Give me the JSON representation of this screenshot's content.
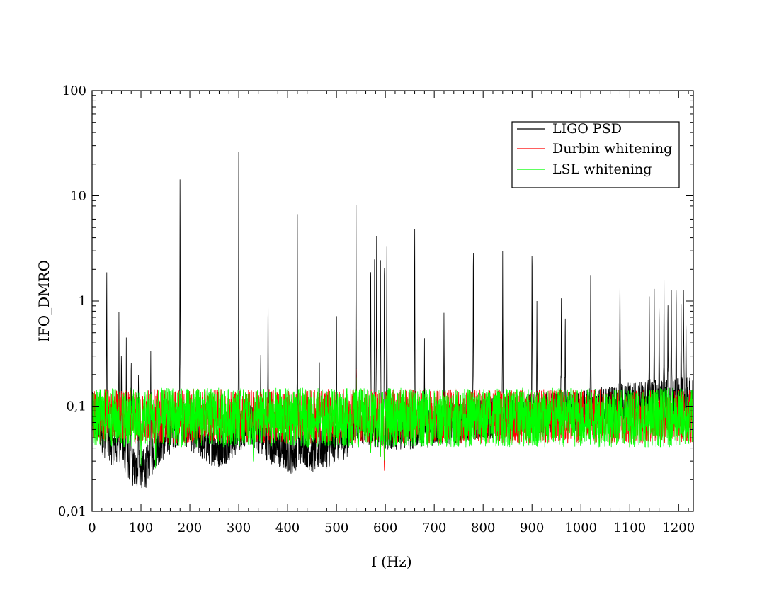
{
  "chart_data": {
    "type": "line",
    "xlabel": "f (Hz)",
    "ylabel": "IFO_DMRO",
    "xlim": [
      0,
      1230
    ],
    "ylim": [
      0.01,
      100
    ],
    "yscale": "log",
    "x_ticks": [
      0,
      100,
      200,
      300,
      400,
      500,
      600,
      700,
      800,
      900,
      1000,
      1100,
      1200
    ],
    "x_tick_labels": [
      "0",
      "100",
      "200",
      "300",
      "400",
      "500",
      "600",
      "700",
      "800",
      "900",
      "1000",
      "1100",
      "1200"
    ],
    "y_ticks": [
      0.01,
      0.1,
      1,
      10,
      100
    ],
    "y_tick_labels": [
      "0,01",
      "0,1",
      "1",
      "10",
      "100"
    ],
    "grid": false,
    "legend_position": "top-right",
    "series": [
      {
        "name": "LIGO PSD",
        "color": "#000000",
        "baseline": [
          [
            0,
            0.09
          ],
          [
            30,
            0.045
          ],
          [
            60,
            0.04
          ],
          [
            90,
            0.024
          ],
          [
            110,
            0.026
          ],
          [
            130,
            0.04
          ],
          [
            160,
            0.055
          ],
          [
            180,
            0.07
          ],
          [
            200,
            0.06
          ],
          [
            230,
            0.045
          ],
          [
            260,
            0.04
          ],
          [
            290,
            0.05
          ],
          [
            320,
            0.07
          ],
          [
            350,
            0.05
          ],
          [
            380,
            0.04
          ],
          [
            410,
            0.035
          ],
          [
            430,
            0.045
          ],
          [
            450,
            0.036
          ],
          [
            480,
            0.04
          ],
          [
            520,
            0.05
          ],
          [
            540,
            0.07
          ],
          [
            600,
            0.06
          ],
          [
            650,
            0.06
          ],
          [
            700,
            0.065
          ],
          [
            800,
            0.075
          ],
          [
            900,
            0.085
          ],
          [
            1000,
            0.09
          ],
          [
            1100,
            0.11
          ],
          [
            1230,
            0.12
          ]
        ],
        "peaks": [
          [
            30,
            3.5
          ],
          [
            55,
            1.0
          ],
          [
            60,
            0.5
          ],
          [
            70,
            0.45
          ],
          [
            80,
            0.4
          ],
          [
            95,
            0.3
          ],
          [
            120,
            0.4
          ],
          [
            180,
            32
          ],
          [
            300,
            40
          ],
          [
            345,
            0.4
          ],
          [
            360,
            1.9
          ],
          [
            420,
            6.7
          ],
          [
            465,
            0.4
          ],
          [
            500,
            1.4
          ],
          [
            540,
            11.5
          ],
          [
            570,
            4.5
          ],
          [
            578,
            5.5
          ],
          [
            582,
            5.8
          ],
          [
            590,
            4.0
          ],
          [
            598,
            5.0
          ],
          [
            603,
            4.5
          ],
          [
            660,
            9.4
          ],
          [
            680,
            0.5
          ],
          [
            720,
            0.9
          ],
          [
            780,
            6.3
          ],
          [
            840,
            3.0
          ],
          [
            900,
            5.7
          ],
          [
            910,
            1.0
          ],
          [
            960,
            1.3
          ],
          [
            968,
            0.9
          ],
          [
            1020,
            2.9
          ],
          [
            1080,
            2.9
          ],
          [
            1140,
            1.3
          ],
          [
            1150,
            1.9
          ],
          [
            1160,
            1.2
          ],
          [
            1170,
            1.95
          ],
          [
            1178,
            1.3
          ],
          [
            1185,
            1.8
          ],
          [
            1195,
            1.9
          ],
          [
            1205,
            1.1
          ],
          [
            1210,
            1.5
          ],
          [
            1215,
            0.9
          ]
        ]
      },
      {
        "name": "Durbin whitening",
        "color": "#ff0000",
        "baseline": [
          [
            0,
            0.08
          ],
          [
            1230,
            0.08
          ]
        ],
        "peaks": [
          [
            540,
            0.24
          ],
          [
            180,
            0.12
          ],
          [
            300,
            0.13
          ],
          [
            600,
            0.15
          ],
          [
            60,
            0.14
          ],
          [
            580,
            0.14
          ]
        ],
        "dips": [
          [
            598,
            0.02
          ],
          [
            590,
            0.03
          ],
          [
            570,
            0.035
          ],
          [
            100,
            0.04
          ]
        ]
      },
      {
        "name": "LSL whitening",
        "color": "#00ff00",
        "baseline": [
          [
            0,
            0.078
          ],
          [
            1230,
            0.078
          ]
        ],
        "peaks": [
          [
            540,
            0.2
          ],
          [
            300,
            0.14
          ],
          [
            180,
            0.14
          ],
          [
            600,
            0.16
          ]
        ],
        "dips": [
          [
            598,
            0.025
          ],
          [
            590,
            0.03
          ],
          [
            570,
            0.032
          ],
          [
            100,
            0.025
          ],
          [
            130,
            0.022
          ],
          [
            330,
            0.028
          ]
        ]
      }
    ]
  }
}
